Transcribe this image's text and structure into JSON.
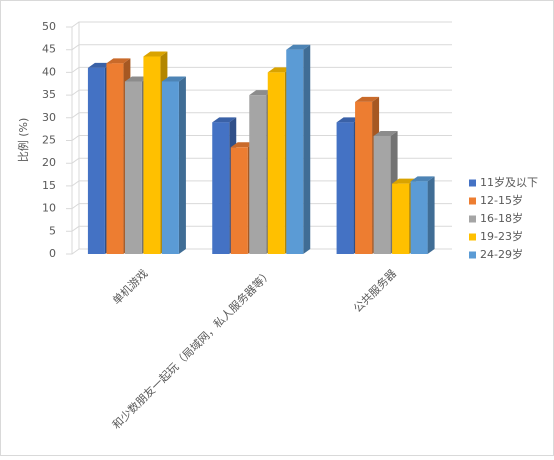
{
  "chart_data": {
    "type": "bar3d",
    "y_label": "比例 (%)",
    "categories": [
      "单机游戏",
      "和少数朋友一起玩（局域网，私人服务器等）",
      "公共服务器"
    ],
    "series": [
      {
        "name": "11岁及以下",
        "color": "#4472c4",
        "values": [
          41,
          29,
          29
        ]
      },
      {
        "name": "12-15岁",
        "color": "#ed7d31",
        "values": [
          42,
          23.5,
          33.5
        ]
      },
      {
        "name": "16-18岁",
        "color": "#a5a5a5",
        "values": [
          38,
          35,
          26
        ]
      },
      {
        "name": "19-23岁",
        "color": "#ffc000",
        "values": [
          43.5,
          40,
          15.5
        ]
      },
      {
        "name": "24-29岁",
        "color": "#5b9bd5",
        "values": [
          38,
          45,
          16
        ]
      }
    ],
    "ylim": [
      0,
      50
    ],
    "yticks": [
      0,
      5,
      10,
      15,
      20,
      25,
      30,
      35,
      40,
      45,
      50
    ],
    "grid": true,
    "legend": "right"
  }
}
